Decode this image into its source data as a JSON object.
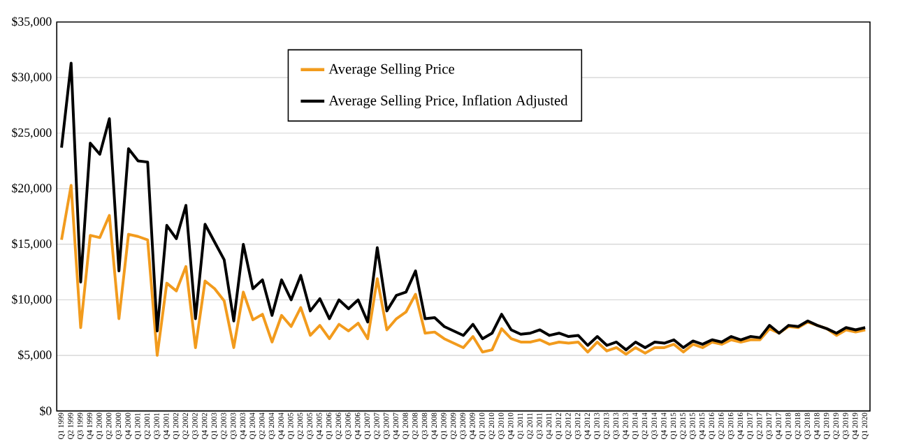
{
  "chart_data": {
    "type": "line",
    "categories": [
      "Q1 1999",
      "Q2 1999",
      "Q3 1999",
      "Q4 1999",
      "Q1 2000",
      "Q2 2000",
      "Q3 2000",
      "Q4 2000",
      "Q1 2001",
      "Q2 2001",
      "Q3 2001",
      "Q4 2001",
      "Q1 2002",
      "Q2 2002",
      "Q3 2002",
      "Q4 2002",
      "Q1 2003",
      "Q2 2003",
      "Q3 2003",
      "Q4 2003",
      "Q1 2004",
      "Q2 2004",
      "Q3 2004",
      "Q4 2004",
      "Q1 2005",
      "Q2 2005",
      "Q3 2005",
      "Q4 2005",
      "Q1 2006",
      "Q2 2006",
      "Q3 2006",
      "Q4 2006",
      "Q1 2007",
      "Q2 2007",
      "Q3 2007",
      "Q4 2007",
      "Q1 2008",
      "Q2 2008",
      "Q3 2008",
      "Q4 2008",
      "Q1 2009",
      "Q2 2009",
      "Q3 2009",
      "Q4 2009",
      "Q1 2010",
      "Q2 2010",
      "Q3 2010",
      "Q4 2010",
      "Q1 2011",
      "Q2 2011",
      "Q3 2011",
      "Q4 2011",
      "Q1 2012",
      "Q2 2012",
      "Q3 2012",
      "Q4 2012",
      "Q1 2013",
      "Q2 2013",
      "Q3 2013",
      "Q4 2013",
      "Q1 2014",
      "Q2 2014",
      "Q3 2014",
      "Q4 2014",
      "Q1 2015",
      "Q2 2015",
      "Q3 2015",
      "Q4 2015",
      "Q1 2016",
      "Q2 2016",
      "Q3 2016",
      "Q4 2016",
      "Q1 2017",
      "Q2 2017",
      "Q3 2017",
      "Q4 2017",
      "Q1 2018",
      "Q2 2018",
      "Q3 2018",
      "Q4 2018",
      "Q1 2019",
      "Q2 2019",
      "Q3 2019",
      "Q4 2019",
      "Q1 2020"
    ],
    "series": [
      {
        "name": "Average Selling Price",
        "color": "#f29b1d",
        "values": [
          15400,
          20300,
          7500,
          15800,
          15600,
          17600,
          8300,
          15900,
          15700,
          15400,
          5000,
          11500,
          10800,
          13000,
          5700,
          11700,
          11000,
          9900,
          5700,
          10700,
          8200,
          8700,
          6200,
          8600,
          7600,
          9300,
          6800,
          7700,
          6500,
          7800,
          7200,
          7900,
          6500,
          11900,
          7300,
          8300,
          8900,
          10500,
          7000,
          7100,
          6500,
          6100,
          5700,
          6700,
          5300,
          5500,
          7400,
          6500,
          6200,
          6200,
          6400,
          6000,
          6200,
          6100,
          6200,
          5300,
          6200,
          5400,
          5700,
          5100,
          5700,
          5200,
          5700,
          5700,
          6000,
          5300,
          6000,
          5700,
          6200,
          6000,
          6400,
          6200,
          6400,
          6400,
          7400,
          7000,
          7600,
          7500,
          8000,
          7700,
          7400,
          6800,
          7300,
          7100,
          7300
        ]
      },
      {
        "name": "Average Selling Price, Inflation Adjusted",
        "color": "#000000",
        "values": [
          23700,
          31300,
          11600,
          24100,
          23100,
          26300,
          12600,
          23600,
          22500,
          22400,
          7200,
          16700,
          15500,
          18500,
          8300,
          16800,
          15200,
          13600,
          8100,
          15000,
          11000,
          11800,
          8600,
          11800,
          10000,
          12200,
          9000,
          10100,
          8300,
          10000,
          9200,
          10000,
          8000,
          14700,
          9000,
          10400,
          10700,
          12600,
          8300,
          8400,
          7600,
          7200,
          6800,
          7800,
          6500,
          7000,
          8700,
          7300,
          6900,
          7000,
          7300,
          6800,
          7000,
          6700,
          6800,
          5900,
          6700,
          5900,
          6200,
          5500,
          6200,
          5700,
          6200,
          6100,
          6400,
          5700,
          6300,
          6000,
          6400,
          6200,
          6700,
          6400,
          6700,
          6600,
          7700,
          7000,
          7700,
          7600,
          8100,
          7700,
          7400,
          7000,
          7500,
          7300,
          7500
        ]
      }
    ],
    "ylim": [
      0,
      35000
    ],
    "yticks": [
      {
        "value": 0,
        "label": "$0"
      },
      {
        "value": 5000,
        "label": "$5,000"
      },
      {
        "value": 10000,
        "label": "$10,000"
      },
      {
        "value": 15000,
        "label": "$15,000"
      },
      {
        "value": 20000,
        "label": "$20,000"
      },
      {
        "value": 25000,
        "label": "$25,000"
      },
      {
        "value": 30000,
        "label": "$30,000"
      },
      {
        "value": 35000,
        "label": "$35,000"
      }
    ],
    "grid": "y",
    "legend": "top"
  }
}
